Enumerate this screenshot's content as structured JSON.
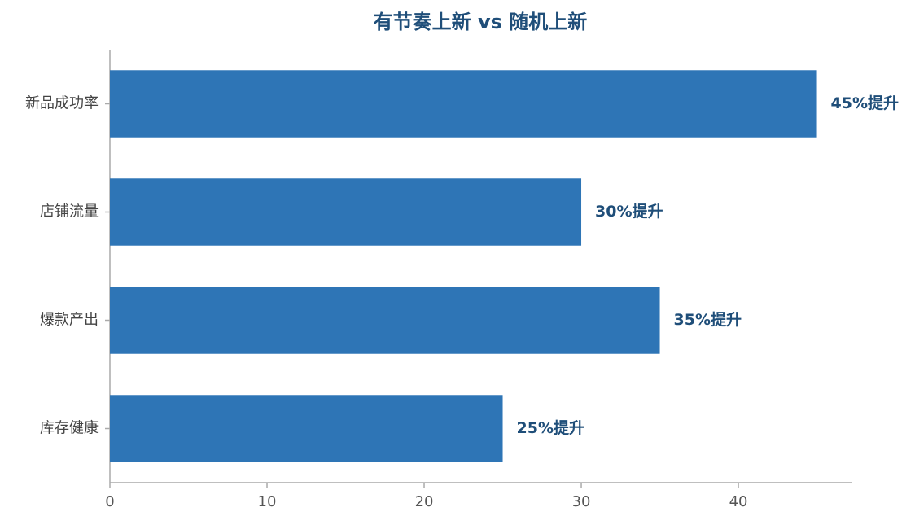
{
  "chart_data": {
    "type": "bar",
    "orientation": "horizontal",
    "title": "有节奏上新 vs 随机上新",
    "categories": [
      "新品成功率",
      "店铺流量",
      "爆款产出",
      "库存健康"
    ],
    "values": [
      45,
      30,
      35,
      25
    ],
    "value_labels": [
      "45%提升",
      "30%提升",
      "35%提升",
      "25%提升"
    ],
    "color": "#2e75b6",
    "xlim": [
      0,
      47.2
    ],
    "xticks": [
      0,
      10,
      20,
      30,
      40
    ],
    "grid": false
  }
}
